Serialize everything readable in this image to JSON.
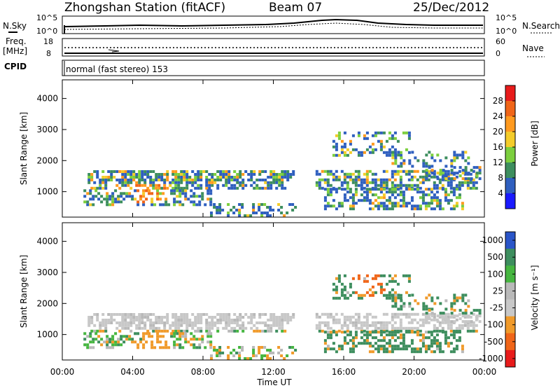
{
  "header": {
    "station": "Zhongshan Station (fitACF)",
    "beam": "Beam 07",
    "date": "25/Dec/2012"
  },
  "strips": {
    "nsky_label": "N.Sky",
    "nsky_ticks": [
      "10^5",
      "10^0"
    ],
    "nsearch_label": "N.Search",
    "nsearch_ticks": [
      "10^5",
      "10^0"
    ],
    "freq_label": "Freq.",
    "freq_unit": "[MHz]",
    "freq_ticks": [
      "18",
      "8"
    ],
    "nave_label": "Nave",
    "nave_ticks": [
      "60",
      "0"
    ],
    "cpid_label": "CPID",
    "cpid_value": "normal (fast stereo) 153"
  },
  "chart_data": [
    {
      "type": "heatmap",
      "name": "power",
      "ylabel": "Slant Range [km]",
      "yticks": [
        "1000",
        "2000",
        "3000",
        "4000"
      ],
      "ylim": [
        180,
        4600
      ],
      "colorbar_label": "Power [dB]",
      "colorbar_ticks": [
        "28",
        "24",
        "20",
        "16",
        "12",
        "8",
        "4"
      ],
      "colorbar_colors": [
        "#e81b1b",
        "#f06518",
        "#ff9a1f",
        "#f4cc2a",
        "#7ccf3e",
        "#3d8e5e",
        "#2f5fbf",
        "#1a1aff"
      ]
    },
    {
      "type": "heatmap",
      "name": "velocity",
      "ylabel": "Slant Range [km]",
      "yticks": [
        "1000",
        "2000",
        "3000",
        "4000"
      ],
      "ylim": [
        180,
        4600
      ],
      "xlabel": "Time UT",
      "xticks": [
        "00:00",
        "04:00",
        "08:00",
        "12:00",
        "16:00",
        "20:00",
        "00:00"
      ],
      "colorbar_label": "Velocity [m s⁻¹]",
      "colorbar_ticks": [
        "1000",
        "500",
        "100",
        "25",
        "-25",
        "-100",
        "-500",
        "-1000"
      ],
      "colorbar_colors": [
        "#2a55c8",
        "#3d8e5e",
        "#46b640",
        "#b9b9b9",
        "#c8c8c8",
        "#f09a2a",
        "#f06518",
        "#e81b1b"
      ]
    }
  ]
}
